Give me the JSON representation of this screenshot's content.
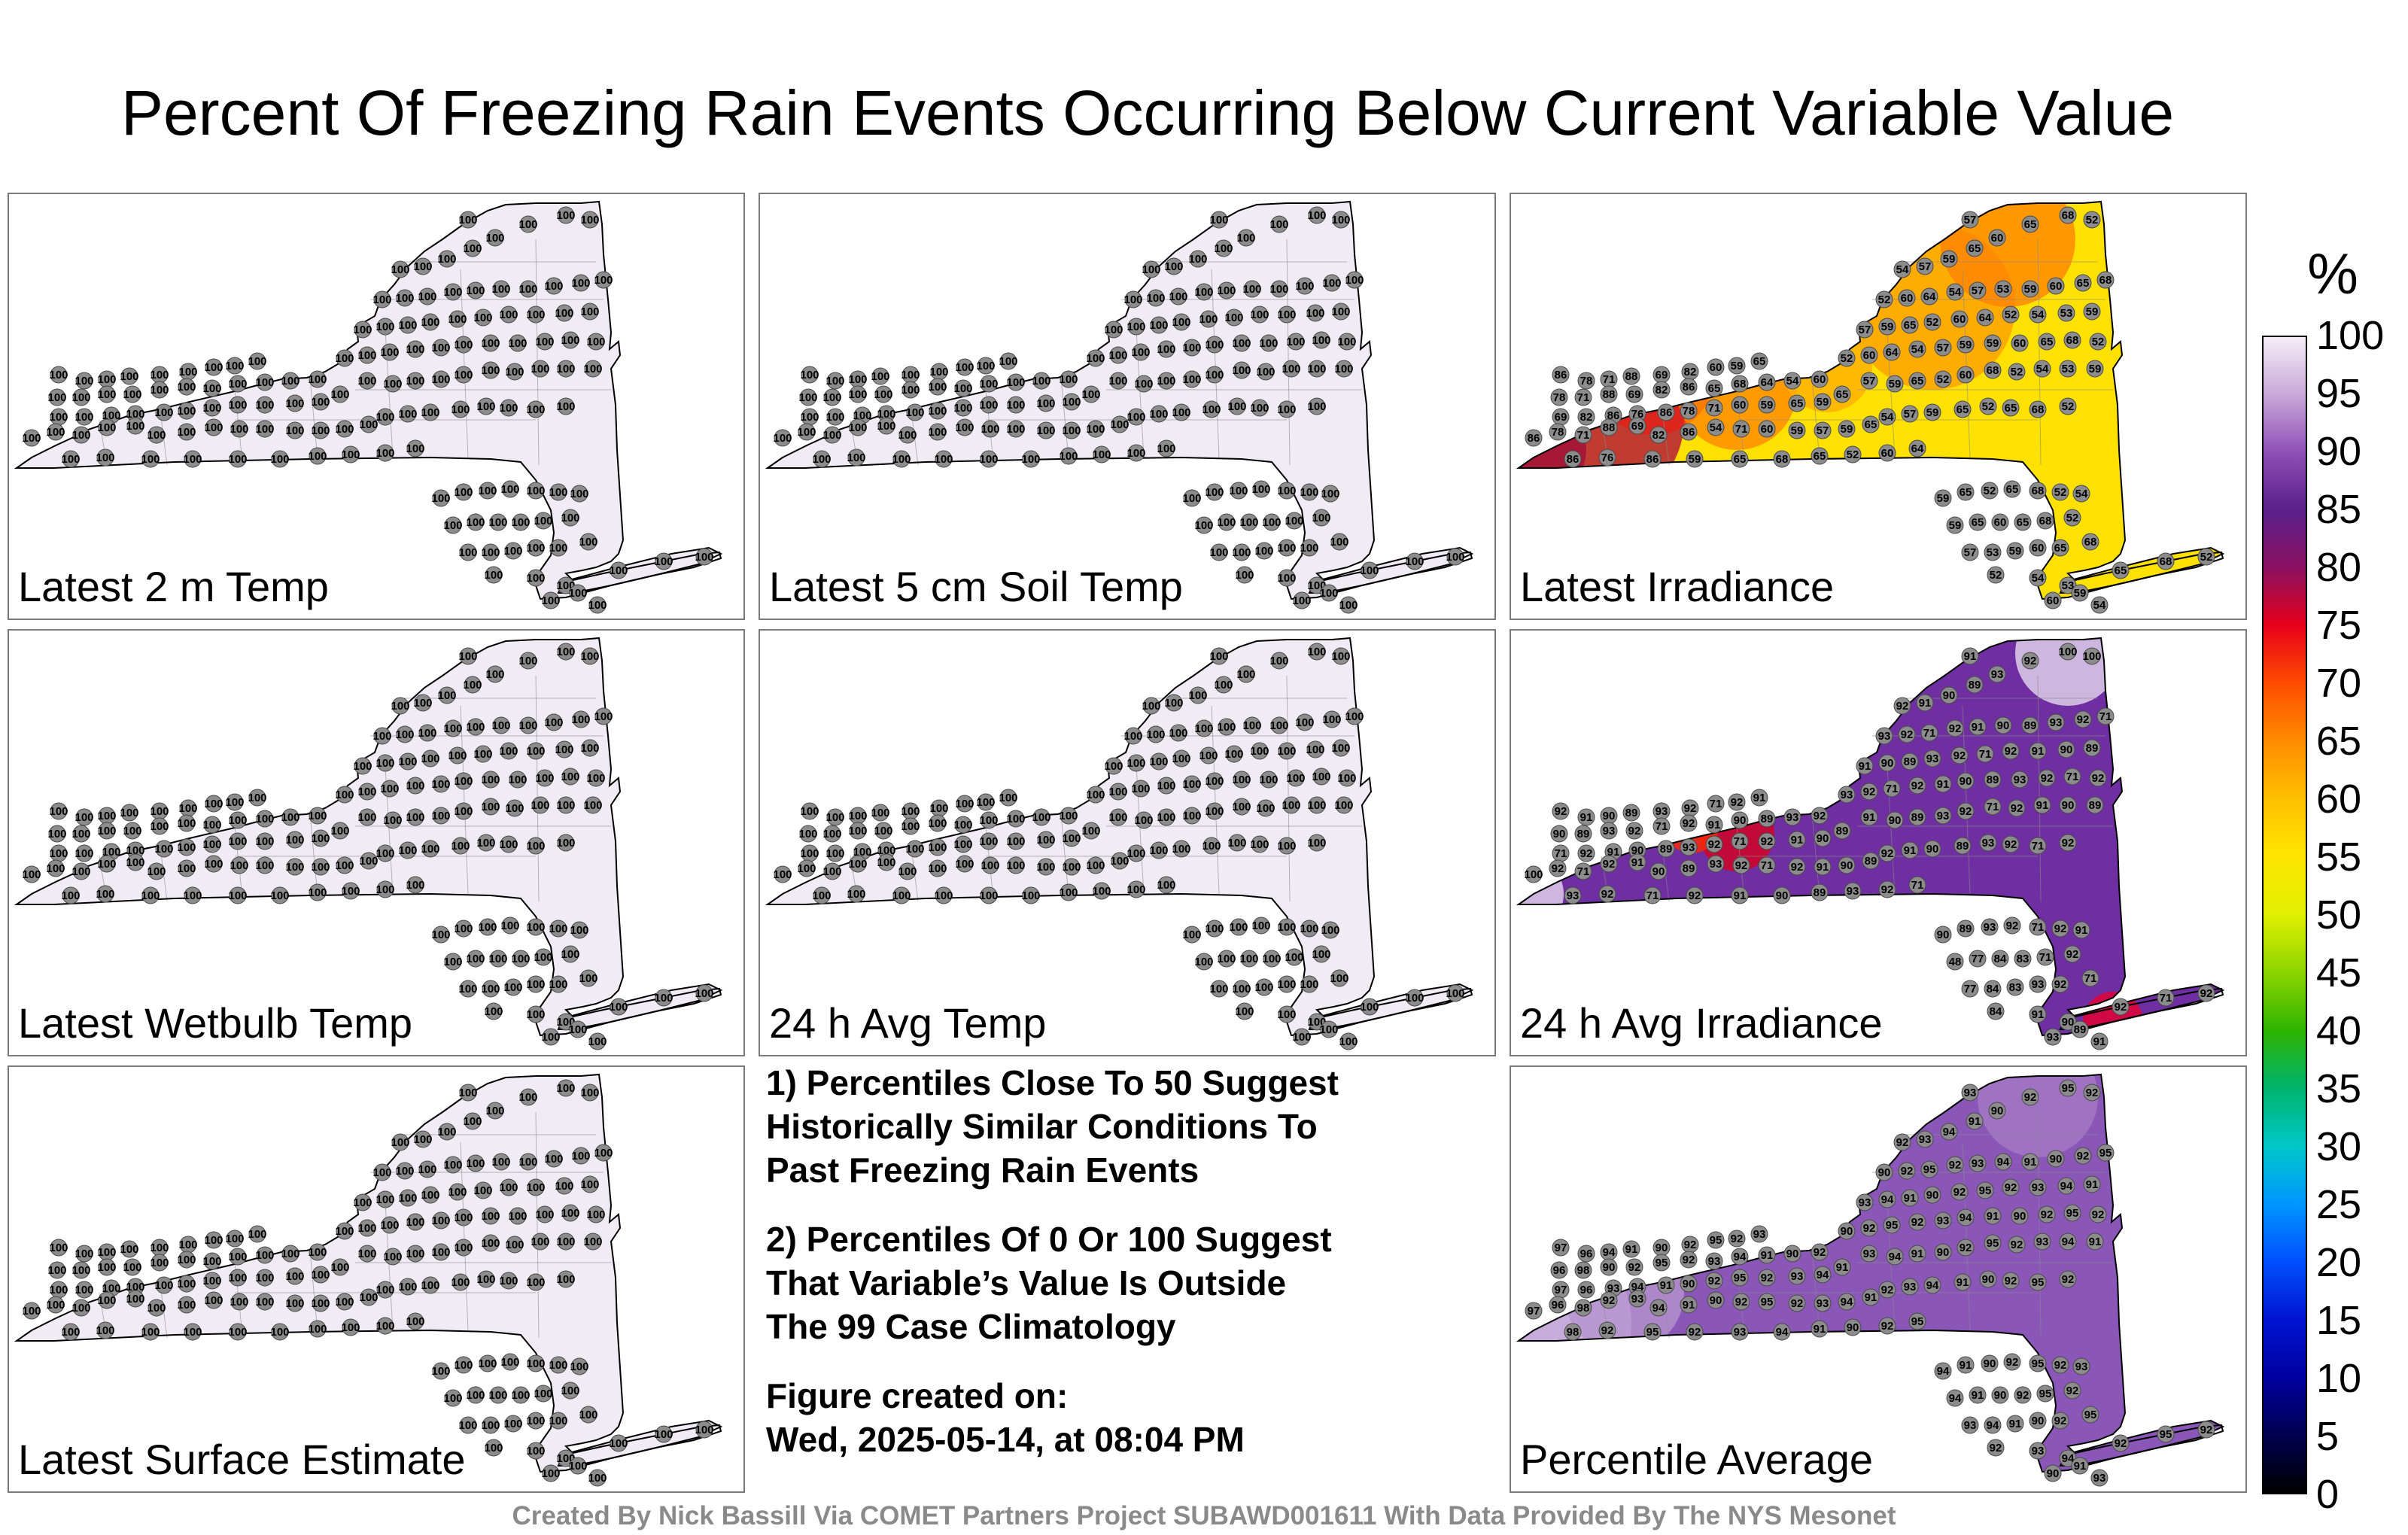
{
  "title": "Percent Of Freezing Rain Events Occurring Below Current Variable Value",
  "colorbar": {
    "unit": "%",
    "ticks": [
      "100",
      "95",
      "90",
      "85",
      "80",
      "75",
      "70",
      "65",
      "60",
      "55",
      "50",
      "45",
      "40",
      "35",
      "30",
      "25",
      "20",
      "15",
      "10",
      "5",
      "0"
    ],
    "stops": [
      "#f4eef8",
      "#c9a8d8",
      "#8e4fb6",
      "#5a1f8c",
      "#8b1060",
      "#e8001a",
      "#ff4d00",
      "#ff8c00",
      "#ffc000",
      "#ffe600",
      "#e0f000",
      "#8cd400",
      "#2db400",
      "#00b46e",
      "#00c8c8",
      "#0096ff",
      "#0050ff",
      "#0014d2",
      "#0000a0",
      "#000050",
      "#000000"
    ]
  },
  "panels": [
    {
      "label": "Latest 2 m Temp",
      "mode": "uniform",
      "fill": "#f1ebf5",
      "value": "100"
    },
    {
      "label": "Latest 5 cm Soil Temp",
      "mode": "uniform",
      "fill": "#f1ebf5",
      "value": "100"
    },
    {
      "label": "Latest Irradiance",
      "mode": "irradiance",
      "fill": "#ffe100"
    },
    {
      "label": "Latest Wetbulb Temp",
      "mode": "uniform",
      "fill": "#f1ebf5",
      "value": "100"
    },
    {
      "label": "24 h Avg Temp",
      "mode": "uniform",
      "fill": "#f1ebf5",
      "value": "100"
    },
    {
      "label": "24 h Avg Irradiance",
      "mode": "avgirr",
      "fill": "#6f2ea2"
    },
    {
      "label": "Latest Surface Estimate",
      "mode": "uniform",
      "fill": "#f1ebf5",
      "value": "100"
    },
    {
      "label": "Percentile Average",
      "mode": "avg",
      "fill": "#8a57b8"
    }
  ],
  "notes": {
    "n1_l1": "1) Percentiles Close To 50 Suggest",
    "n1_l2": "Historically Similar Conditions To",
    "n1_l3": "Past Freezing Rain Events",
    "n2_l1": "2) Percentiles Of 0 Or 100 Suggest",
    "n2_l2": "That Variable’s Value Is Outside",
    "n2_l3": "The 99 Case Climatology",
    "fig_l1": "Figure created on:",
    "fig_l2": "Wed, 2025-05-14, at 08:04 PM"
  },
  "footer": "Created By Nick Bassill Via COMET Partners Project SUBAWD001611 With Data Provided By The NYS Mesonet"
}
